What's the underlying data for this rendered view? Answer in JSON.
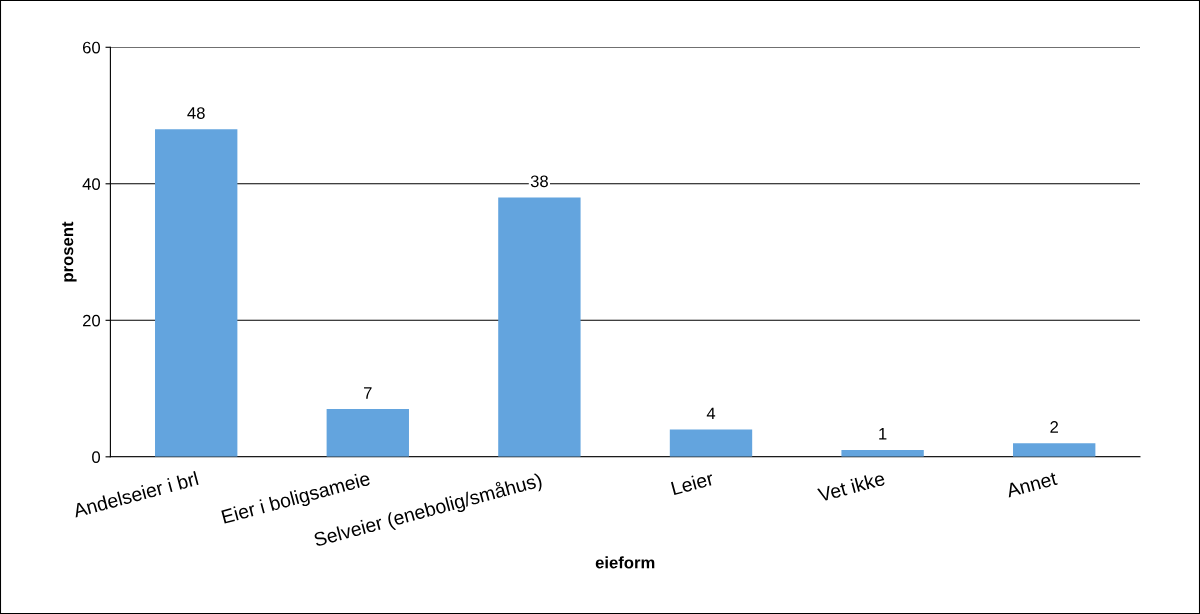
{
  "chart_data": {
    "type": "bar",
    "xlabel": "eieform",
    "ylabel": "prosent",
    "categories": [
      "Andelseier i brl",
      "Eier i boligsameie",
      "Selveier (enebolig/småhus)",
      "Leier",
      "Vet ikke",
      "Annet"
    ],
    "values": [
      48,
      7,
      38,
      4,
      1,
      2
    ],
    "color": "#63a4de",
    "ylim": [
      0,
      60
    ],
    "yticks": [
      0,
      20,
      40,
      60
    ],
    "grid": "y",
    "data_labels": true,
    "legend": false
  }
}
